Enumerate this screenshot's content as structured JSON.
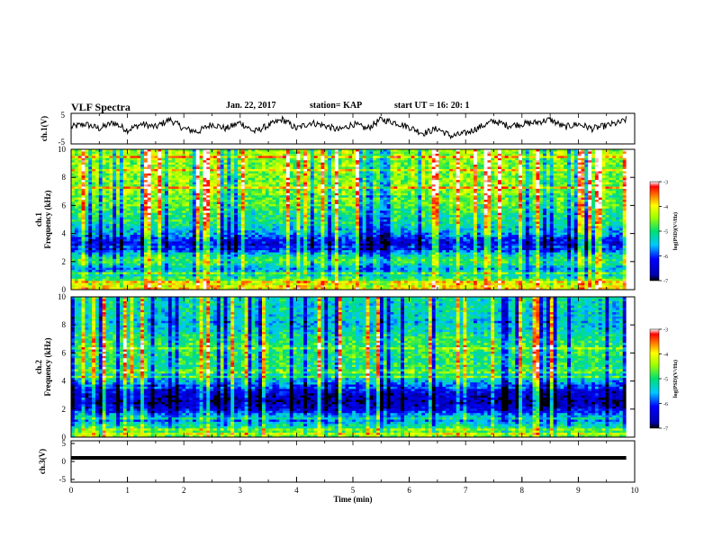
{
  "header": {
    "title": "VLF Spectra",
    "date": "Jan. 22, 2017",
    "station": "station= KAP",
    "start": "start  UT =  16: 20: 1"
  },
  "chart_data": [
    {
      "type": "line",
      "panel": "ch1-waveform",
      "ylabel": "ch.1(V)",
      "ylim": [
        -5,
        5
      ],
      "yticks": [
        5,
        -5
      ],
      "xlim": [
        0,
        10
      ],
      "series": [
        {
          "color": "#000000",
          "x": [
            0,
            0.25,
            0.5,
            0.75,
            1,
            1.25,
            1.5,
            1.75,
            2,
            2.25,
            2.5,
            2.75,
            3,
            3.25,
            3.5,
            3.75,
            4,
            4.25,
            4.5,
            4.75,
            5,
            5.25,
            5.5,
            5.75,
            6,
            6.25,
            6.5,
            6.75,
            7,
            7.25,
            7.5,
            7.75,
            8,
            8.25,
            8.5,
            8.75,
            9,
            9.25,
            9.5,
            9.75,
            9.85
          ],
          "values": [
            0.5,
            1.5,
            0.0,
            2.0,
            -0.5,
            1.5,
            0.5,
            3.0,
            0.0,
            -1.0,
            1.5,
            0.0,
            2.0,
            -1.0,
            1.0,
            3.0,
            0.0,
            2.0,
            1.0,
            -0.5,
            1.5,
            0.0,
            3.0,
            2.0,
            0.5,
            -1.5,
            0.0,
            -2.5,
            -1.5,
            0.5,
            2.5,
            1.0,
            1.5,
            2.0,
            3.0,
            0.5,
            1.5,
            0.0,
            1.0,
            2.0,
            3.0
          ]
        }
      ]
    },
    {
      "type": "heatmap",
      "panel": "ch1-spectrogram",
      "ylabel": "ch.1\nFrequency (kHz)",
      "xlim": [
        0,
        10
      ],
      "ylim": [
        0,
        10
      ],
      "yticks": [
        0,
        2,
        4,
        6,
        8,
        10
      ],
      "colorbar": {
        "label": "log(PSD)(V²/Hz)",
        "ticks": [
          -3,
          -4,
          -5,
          -6,
          -7
        ],
        "range": [
          -7,
          -3
        ]
      },
      "profile": {
        "freq_khz": [
          0,
          0.5,
          1,
          1.5,
          2,
          2.5,
          3,
          3.5,
          4,
          4.5,
          5,
          5.5,
          6,
          6.5,
          7,
          7.5,
          8,
          8.5,
          9,
          9.5,
          10
        ],
        "log_psd_median": [
          -3.8,
          -4.2,
          -5.2,
          -5.6,
          -4.8,
          -5.3,
          -6.4,
          -6.2,
          -5.6,
          -5.3,
          -5.0,
          -5.0,
          -4.7,
          -4.6,
          -4.5,
          -4.5,
          -4.5,
          -4.5,
          -4.5,
          -4.4,
          -4.4
        ]
      }
    },
    {
      "type": "heatmap",
      "panel": "ch2-spectrogram",
      "ylabel": "ch.2\nFrequency (kHz)",
      "xlim": [
        0,
        10
      ],
      "ylim": [
        0,
        10
      ],
      "yticks": [
        0,
        2,
        4,
        6,
        8,
        10
      ],
      "colorbar": {
        "label": "log(PSD)(V²/Hz)",
        "ticks": [
          -3,
          -4,
          -5,
          -6,
          -7
        ],
        "range": [
          -7,
          -3
        ]
      },
      "profile": {
        "freq_khz": [
          0,
          0.5,
          1,
          1.5,
          2,
          2.5,
          3,
          3.5,
          4,
          4.5,
          5,
          5.5,
          6,
          6.5,
          7,
          7.5,
          8,
          8.5,
          9,
          9.5,
          10
        ],
        "log_psd_median": [
          -4.5,
          -4.8,
          -5.4,
          -5.5,
          -6.4,
          -6.7,
          -6.5,
          -6.2,
          -5.5,
          -5.2,
          -5.0,
          -5.0,
          -4.9,
          -4.9,
          -5.0,
          -5.3,
          -5.4,
          -5.4,
          -5.3,
          -5.3,
          -5.2
        ]
      }
    },
    {
      "type": "line",
      "panel": "ch3-waveform",
      "ylabel": "ch.3(V)",
      "ylim": [
        -5,
        5
      ],
      "yticks": [
        5,
        0,
        -5
      ],
      "xlim": [
        0,
        10
      ],
      "xlabel": "Time  (min)",
      "xticks": [
        0,
        1,
        2,
        3,
        4,
        5,
        6,
        7,
        8,
        9,
        10
      ],
      "series": [
        {
          "color": "#000000",
          "x": [
            0,
            9.85
          ],
          "values": [
            1.0,
            1.0
          ]
        }
      ]
    }
  ]
}
